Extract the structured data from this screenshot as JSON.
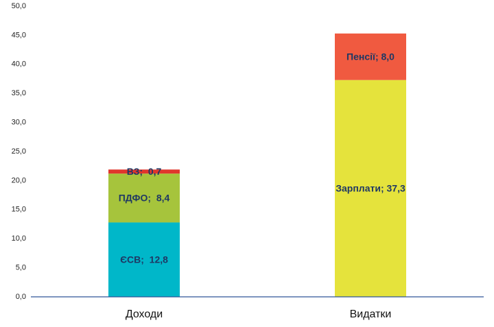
{
  "chart_data": {
    "type": "stacked_bar",
    "categories": [
      "Доходи",
      "Видатки"
    ],
    "series": [
      {
        "color": "#00b7c9",
        "values": [
          12.8,
          null
        ],
        "value_labels": [
          "ЄСВ;  12,8",
          null
        ]
      },
      {
        "color": "#a6c43c",
        "values": [
          8.4,
          null
        ],
        "value_labels": [
          "ПДФО;  8,4",
          null
        ]
      },
      {
        "color": "#e0362c",
        "values": [
          0.7,
          null
        ],
        "value_labels": [
          "ВЗ;  0,7",
          null
        ]
      },
      {
        "color": "#e5e33c",
        "values": [
          null,
          37.3
        ],
        "value_labels": [
          null,
          "Зарплати; 37,3"
        ]
      },
      {
        "color": "#f05a40",
        "values": [
          null,
          8.0
        ],
        "value_labels": [
          null,
          "Пенсії; 8,0"
        ]
      }
    ],
    "ylim": [
      0,
      50
    ],
    "yticks": [
      {
        "value": 0,
        "label": "0,0"
      },
      {
        "value": 5,
        "label": "5,0"
      },
      {
        "value": 10,
        "label": "10,0"
      },
      {
        "value": 15,
        "label": "15,0"
      },
      {
        "value": 20,
        "label": "20,0"
      },
      {
        "value": 25,
        "label": "25,0"
      },
      {
        "value": 30,
        "label": "30,0"
      },
      {
        "value": 35,
        "label": "35,0"
      },
      {
        "value": 40,
        "label": "40,0"
      },
      {
        "value": 45,
        "label": "45,0"
      },
      {
        "value": 50,
        "label": "50,0"
      }
    ],
    "grid": false
  }
}
